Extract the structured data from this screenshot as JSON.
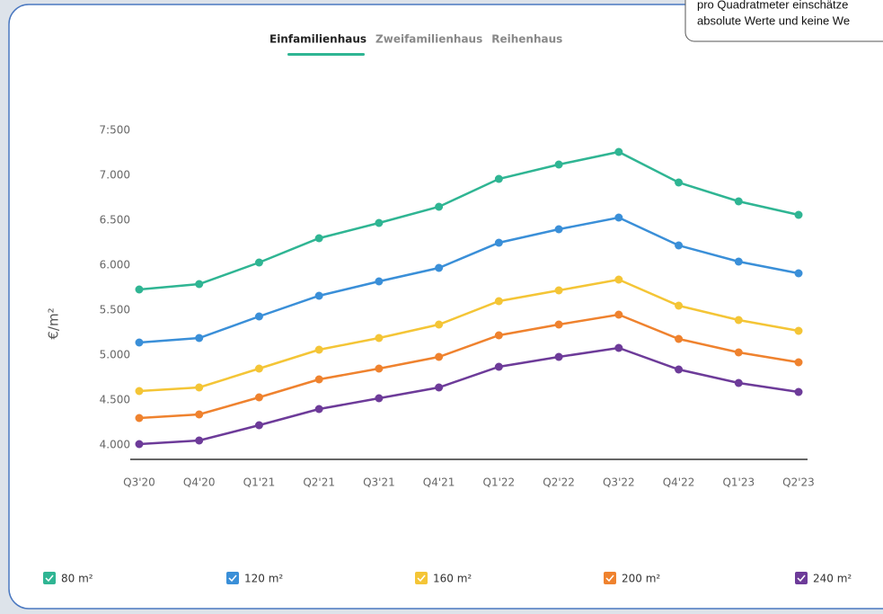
{
  "tooltip": [
    "pro Quadratmeter einschätze",
    "absolute Werte und keine We"
  ],
  "tabs": [
    "Einfamilienhaus",
    "Zweifamilienhaus",
    "Reihenhaus"
  ],
  "active_tab": 0,
  "chart_data": {
    "type": "line",
    "y_label": "€/m²",
    "categories": [
      "Q3'20",
      "Q4'20",
      "Q1'21",
      "Q2'21",
      "Q3'21",
      "Q4'21",
      "Q1'22",
      "Q2'22",
      "Q3'22",
      "Q4'22",
      "Q1'23",
      "Q2'23"
    ],
    "ylim": [
      4000,
      7500
    ],
    "yticks": [
      {
        "value": 4000,
        "label": "4.000"
      },
      {
        "value": 4500,
        "label": "4.500"
      },
      {
        "value": 5000,
        "label": "5.000"
      },
      {
        "value": 5500,
        "label": "5.500"
      },
      {
        "value": 6000,
        "label": "6.000"
      },
      {
        "value": 6500,
        "label": "6.500"
      },
      {
        "value": 7000,
        "label": "7.000"
      },
      {
        "value": 7500,
        "label": "7:500"
      }
    ],
    "grid": false,
    "series": [
      {
        "name": "80 m²",
        "color": "#2fb593",
        "values": [
          5730,
          5790,
          6030,
          6300,
          6470,
          6650,
          6960,
          7120,
          7260,
          6920,
          6710,
          6560
        ]
      },
      {
        "name": "120 m²",
        "color": "#3a8fd8",
        "values": [
          5140,
          5190,
          5430,
          5660,
          5820,
          5970,
          6250,
          6400,
          6530,
          6220,
          6040,
          5910
        ]
      },
      {
        "name": "160 m²",
        "color": "#f4c536",
        "values": [
          4600,
          4640,
          4850,
          5060,
          5190,
          5340,
          5600,
          5720,
          5840,
          5550,
          5390,
          5270
        ]
      },
      {
        "name": "200 m²",
        "color": "#ef822e",
        "values": [
          4300,
          4340,
          4530,
          4730,
          4850,
          4980,
          5220,
          5340,
          5450,
          5180,
          5030,
          4920
        ]
      },
      {
        "name": "240 m²",
        "color": "#6d3b99",
        "values": [
          4010,
          4050,
          4220,
          4400,
          4520,
          4640,
          4870,
          4980,
          5080,
          4840,
          4690,
          4590
        ]
      }
    ]
  }
}
